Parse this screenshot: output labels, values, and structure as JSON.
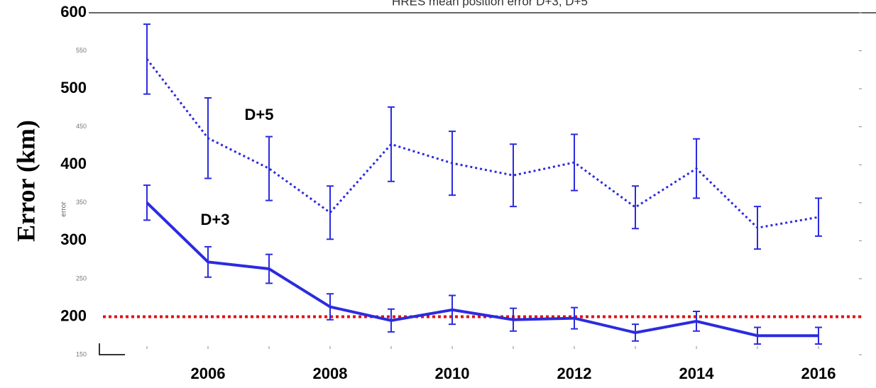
{
  "chart_data": {
    "type": "line",
    "title": "HRES mean position error D+3, D+5",
    "y_label": "Error (km)",
    "y_label_small": "error",
    "x": [
      2005,
      2006,
      2007,
      2008,
      2009,
      2010,
      2011,
      2012,
      2013,
      2014,
      2015,
      2016
    ],
    "series": [
      {
        "name": "D+5",
        "color": "#2b2be0",
        "style": "dotted",
        "values": [
          539,
          435,
          395,
          337,
          427,
          402,
          386,
          403,
          344,
          395,
          317,
          331
        ],
        "errors": [
          46,
          53,
          42,
          35,
          49,
          42,
          41,
          37,
          28,
          39,
          28,
          25
        ]
      },
      {
        "name": "D+3",
        "color": "#2b2be0",
        "style": "solid",
        "values": [
          350,
          272,
          263,
          213,
          195,
          209,
          196,
          198,
          179,
          194,
          175,
          175
        ],
        "errors": [
          23,
          20,
          19,
          17,
          15,
          19,
          15,
          14,
          11,
          13,
          11,
          11
        ]
      }
    ],
    "hline": {
      "value": 200,
      "color": "#e01010"
    },
    "xlim": [
      2004,
      2017
    ],
    "xticks": [
      2006,
      2008,
      2010,
      2012,
      2014,
      2016
    ],
    "ylim": [
      150,
      600
    ],
    "yticks": [
      150,
      200,
      250,
      300,
      350,
      400,
      450,
      500,
      550,
      600
    ],
    "grid": false
  }
}
